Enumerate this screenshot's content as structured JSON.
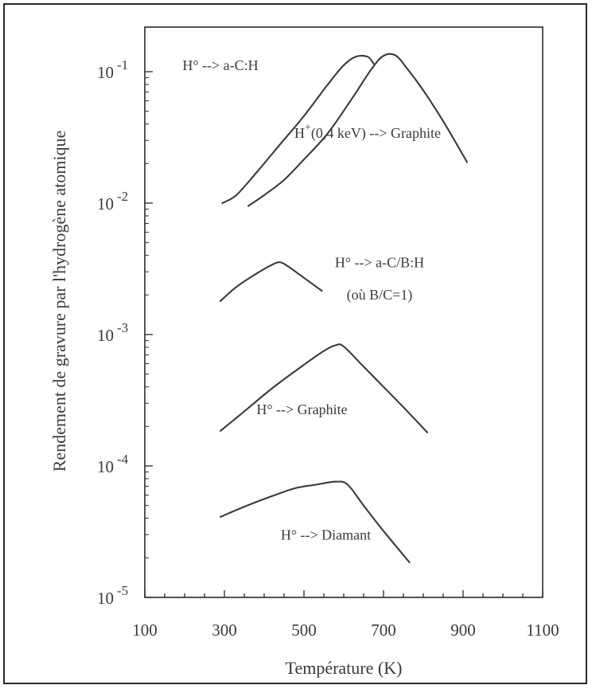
{
  "chart_data": {
    "type": "line",
    "title": "",
    "xlabel": "Température (K)",
    "ylabel": "Rendement de gravure par l'hydrogène atomique",
    "xlim": [
      100,
      1100
    ],
    "ylim_exponents": [
      -5,
      -1
    ],
    "yscale": "log",
    "grid": false,
    "x_ticks": [
      100,
      300,
      500,
      700,
      900,
      1100
    ],
    "y_ticks": [
      {
        "base": "10",
        "exp": "-1",
        "value": 0.1
      },
      {
        "base": "10",
        "exp": "-2",
        "value": 0.01
      },
      {
        "base": "10",
        "exp": "-3",
        "value": 0.001
      },
      {
        "base": "10",
        "exp": "-4",
        "value": 0.0001
      },
      {
        "base": "10",
        "exp": "-5",
        "value": 1e-05
      }
    ],
    "series": [
      {
        "name": "H° --> a-C:H",
        "points": [
          [
            295,
            0.01
          ],
          [
            330,
            0.0115
          ],
          [
            380,
            0.017
          ],
          [
            440,
            0.028
          ],
          [
            500,
            0.046
          ],
          [
            560,
            0.08
          ],
          [
            600,
            0.112
          ],
          [
            630,
            0.13
          ],
          [
            660,
            0.13
          ],
          [
            675,
            0.115
          ]
        ]
      },
      {
        "name": "H⁺(0,4 keV) --> Graphite",
        "points": [
          [
            360,
            0.0095
          ],
          [
            400,
            0.0115
          ],
          [
            450,
            0.015
          ],
          [
            500,
            0.0215
          ],
          [
            560,
            0.034
          ],
          [
            620,
            0.062
          ],
          [
            670,
            0.105
          ],
          [
            700,
            0.132
          ],
          [
            730,
            0.133
          ],
          [
            760,
            0.105
          ],
          [
            800,
            0.072
          ],
          [
            850,
            0.042
          ],
          [
            910,
            0.0205
          ]
        ]
      },
      {
        "name": "H° --> a-C/B:H (où B/C=1)",
        "points": [
          [
            290,
            0.0018
          ],
          [
            330,
            0.0023
          ],
          [
            380,
            0.0029
          ],
          [
            420,
            0.0034
          ],
          [
            440,
            0.00355
          ],
          [
            460,
            0.0033
          ],
          [
            500,
            0.0027
          ],
          [
            545,
            0.00215
          ]
        ]
      },
      {
        "name": "H° --> Graphite",
        "points": [
          [
            290,
            0.000185
          ],
          [
            350,
            0.00026
          ],
          [
            420,
            0.00039
          ],
          [
            490,
            0.00056
          ],
          [
            550,
            0.00075
          ],
          [
            580,
            0.00083
          ],
          [
            600,
            0.00081
          ],
          [
            650,
            0.00057
          ],
          [
            700,
            0.0004
          ],
          [
            750,
            0.00028
          ],
          [
            810,
            0.00018
          ]
        ]
      },
      {
        "name": "H° --> Diamant",
        "points": [
          [
            290,
            4.1e-05
          ],
          [
            350,
            4.9e-05
          ],
          [
            420,
            5.9e-05
          ],
          [
            480,
            6.8e-05
          ],
          [
            530,
            7.2e-05
          ],
          [
            580,
            7.6e-05
          ],
          [
            610,
            7.2e-05
          ],
          [
            650,
            5e-05
          ],
          [
            700,
            3.2e-05
          ],
          [
            765,
            1.85e-05
          ]
        ]
      }
    ],
    "annotations": [
      {
        "series": 0,
        "parts": [
          {
            "text": "H° --> a-C:H"
          }
        ],
        "x": 290,
        "y": 0.103
      },
      {
        "series": 1,
        "parts": [
          {
            "text": "H"
          },
          {
            "text": "+",
            "sup": true
          },
          {
            "text": "(0,4 keV) --> Graphite"
          }
        ],
        "x": 660,
        "y": 0.0315
      },
      {
        "series": 2,
        "parts": [
          {
            "text": "H° --> a-C/B:H"
          }
        ],
        "x": 690,
        "y": 0.00325
      },
      {
        "series": 2,
        "parts": [
          {
            "text": "(où B/C=1)"
          }
        ],
        "x": 690,
        "y": 0.00185
      },
      {
        "series": 3,
        "parts": [
          {
            "text": "H° --> Graphite"
          }
        ],
        "x": 495,
        "y": 0.000247
      },
      {
        "series": 4,
        "parts": [
          {
            "text": "H° --> Diamant"
          }
        ],
        "x": 555,
        "y": 2.75e-05
      }
    ],
    "line_color": "#3a3a3a",
    "text_color": "#3a3a3a"
  }
}
